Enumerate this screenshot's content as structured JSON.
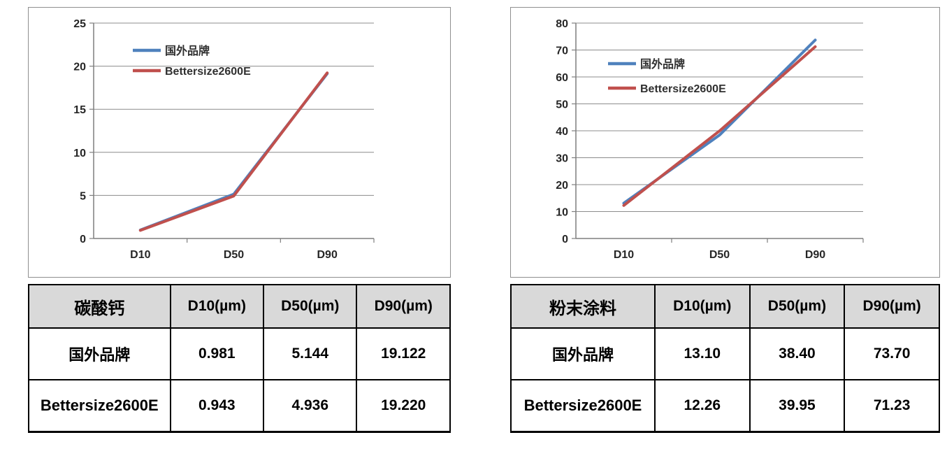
{
  "colors": {
    "series_blue": "#4F81BD",
    "series_red": "#C0504D",
    "gridline": "#8c8c8c",
    "axis": "#7f7f7f",
    "tick_text": "#262626",
    "legend_text": "#303030",
    "chart_border": "#8f8f8f",
    "table_border": "#000000",
    "table_header_bg": "#d9d9d9",
    "page_bg": "#ffffff"
  },
  "chart_data": [
    {
      "type": "line",
      "categories": [
        "D10",
        "D50",
        "D90"
      ],
      "series": [
        {
          "name": "国外品牌",
          "color": "#4F81BD",
          "values": [
            0.981,
            5.144,
            19.122
          ]
        },
        {
          "name": "Bettersize2600E",
          "color": "#C0504D",
          "values": [
            0.943,
            4.936,
            19.22
          ]
        }
      ],
      "ylim": [
        0,
        25
      ],
      "ytick": 5,
      "grid": true,
      "legend_position": "inside-top-left",
      "legend_xy": [
        148,
        61
      ],
      "legend_gap": 29
    },
    {
      "type": "line",
      "categories": [
        "D10",
        "D50",
        "D90"
      ],
      "series": [
        {
          "name": "国外品牌",
          "color": "#4F81BD",
          "values": [
            13.1,
            38.4,
            73.7
          ]
        },
        {
          "name": "Bettersize2600E",
          "color": "#C0504D",
          "values": [
            12.26,
            39.95,
            71.23
          ]
        }
      ],
      "ylim": [
        0,
        80
      ],
      "ytick": 10,
      "grid": true,
      "legend_position": "inside-top-left",
      "legend_xy": [
        138,
        80
      ],
      "legend_gap": 35
    }
  ],
  "tables": [
    {
      "headers": [
        "碳酸钙",
        "D10(µm)",
        "D50(µm)",
        "D90(µm)"
      ],
      "rows": [
        [
          "国外品牌",
          "0.981",
          "5.144",
          "19.122"
        ],
        [
          "Bettersize2600E",
          "0.943",
          "4.936",
          "19.220"
        ]
      ]
    },
    {
      "headers": [
        "粉末涂料",
        "D10(µm)",
        "D50(µm)",
        "D90(µm)"
      ],
      "rows": [
        [
          "国外品牌",
          "13.10",
          "38.40",
          "73.70"
        ],
        [
          "Bettersize2600E",
          "12.26",
          "39.95",
          "71.23"
        ]
      ]
    }
  ]
}
